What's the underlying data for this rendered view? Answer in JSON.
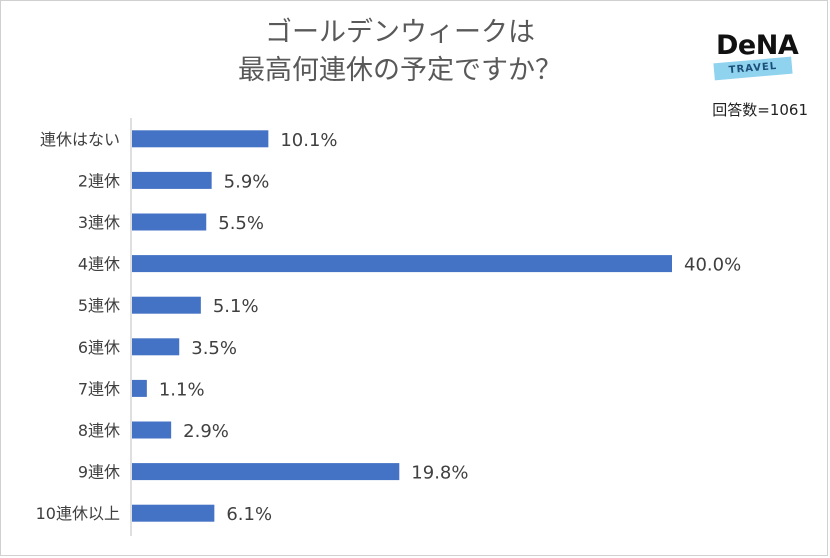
{
  "header": {
    "title_line1": "ゴールデンウィークは",
    "title_line2": "最高何連休の予定ですか？",
    "sample_size": "回答数=1061"
  },
  "logo": {
    "brand": "DeNA",
    "tag": "TRAVEL"
  },
  "colors": {
    "bar": "#4472c4",
    "axis": "#bfbfbf",
    "text": "#404040"
  },
  "chart_data": {
    "type": "bar",
    "orientation": "horizontal",
    "categories": [
      "連休はない",
      "2連休",
      "3連休",
      "4連休",
      "5連休",
      "6連休",
      "7連休",
      "8連休",
      "9連休",
      "10連休以上"
    ],
    "values": [
      10.1,
      5.9,
      5.5,
      40.0,
      5.1,
      3.5,
      1.1,
      2.9,
      19.8,
      6.1
    ],
    "labels": [
      "10.1%",
      "5.9%",
      "5.5%",
      "40.0%",
      "5.1%",
      "3.5%",
      "1.1%",
      "2.9%",
      "19.8%",
      "6.1%"
    ],
    "xlim": [
      0,
      40
    ],
    "grid": false,
    "legend": "none"
  }
}
